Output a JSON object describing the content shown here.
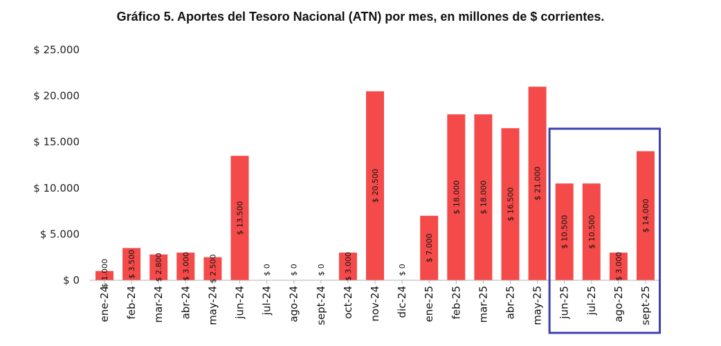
{
  "chart_data": {
    "type": "bar",
    "title": "Gráfico 5. Aportes del Tesoro Nacional (ATN) por mes, en millones de $ corrientes.",
    "xlabel": "",
    "ylabel": "",
    "ylim": [
      0,
      25000
    ],
    "y_ticks": [
      0,
      5000,
      10000,
      15000,
      20000,
      25000
    ],
    "y_tick_labels": [
      "$ 0",
      "$ 5.000",
      "$ 10.000",
      "$ 15.000",
      "$ 20.000",
      "$ 25.000"
    ],
    "categories": [
      "ene-24",
      "feb-24",
      "mar-24",
      "abr-24",
      "may-24",
      "jun-24",
      "jul-24",
      "ago-24",
      "sept-24",
      "oct-24",
      "nov-24",
      "dic-24",
      "ene-25",
      "feb-25",
      "mar-25",
      "abr-25",
      "may-25",
      "jun-25",
      "jul-25",
      "ago-25",
      "sept-25"
    ],
    "values": [
      1000,
      3500,
      2800,
      3000,
      2500,
      13500,
      0,
      0,
      0,
      3000,
      20500,
      0,
      7000,
      18000,
      18000,
      16500,
      21000,
      10500,
      10500,
      3000,
      14000
    ],
    "data_labels": [
      "$ 1.000",
      "$ 3.500",
      "$ 2.800",
      "$ 3.000",
      "$ 2.500",
      "$ 13.500",
      "$ 0",
      "$ 0",
      "$ 0",
      "$ 3.000",
      "$ 20.500",
      "$ 0",
      "$ 7.000",
      "$ 18.000",
      "$ 18.000",
      "$ 16.500",
      "$ 21.000",
      "$ 10.500",
      "$ 10.500",
      "$ 3.000",
      "$ 14.000"
    ],
    "bar_color": "#f54a4a",
    "highlight": {
      "from": "jun-25",
      "to": "sept-25",
      "color": "#3b3fb0"
    }
  }
}
